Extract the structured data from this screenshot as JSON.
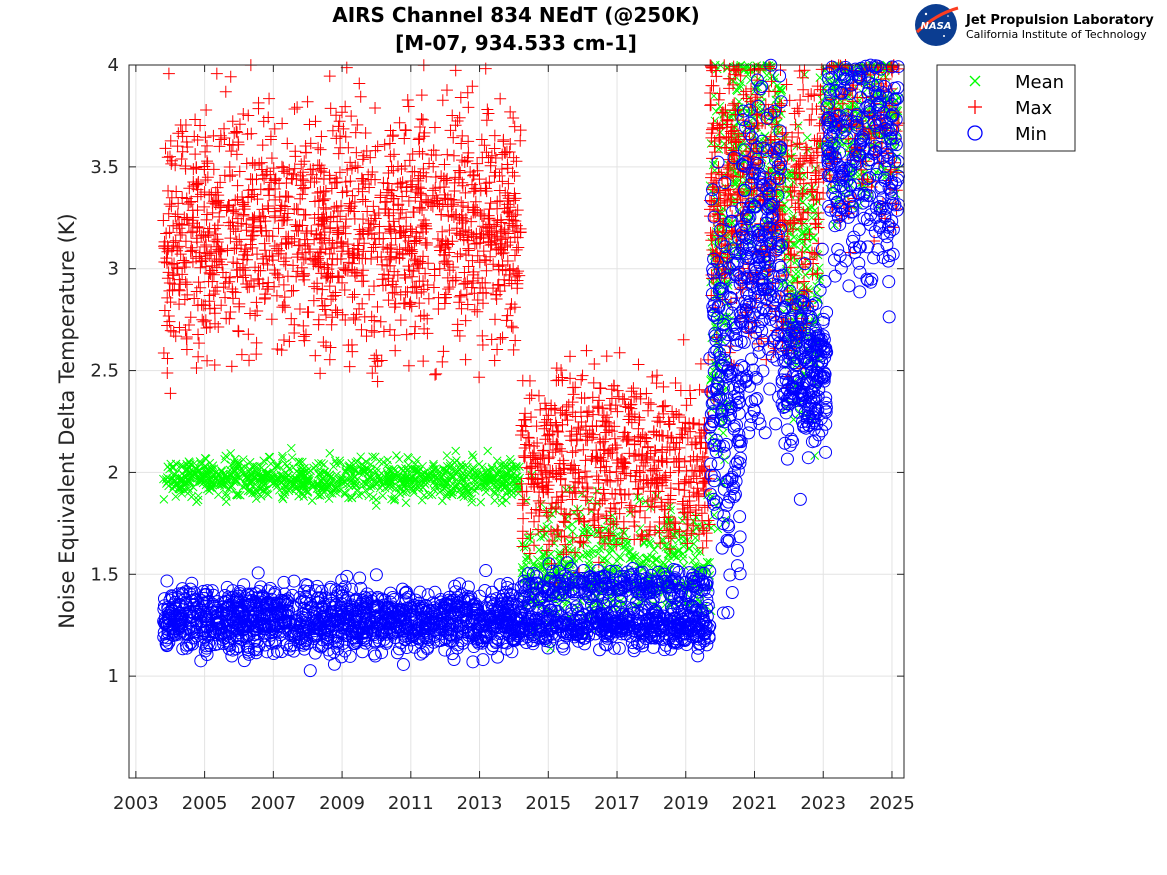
{
  "chart_data": {
    "type": "scatter",
    "title": "AIRS Channel 834 NEdT (@250K)",
    "subtitle": "[M-07, 934.533 cm-1]",
    "xlabel": "",
    "ylabel": "Noise Equivalent Delta Temperature (K)",
    "xlim": [
      2002.8,
      2025.35
    ],
    "ylim": [
      0.5,
      4.0
    ],
    "xticks": [
      2003,
      2005,
      2007,
      2009,
      2011,
      2013,
      2015,
      2017,
      2019,
      2021,
      2023,
      2025
    ],
    "xtick_labels": [
      "2003",
      "2005",
      "2007",
      "2009",
      "2011",
      "2013",
      "2015",
      "2017",
      "2019",
      "2021",
      "2023",
      "2025"
    ],
    "yticks": [
      1,
      1.5,
      2,
      2.5,
      3,
      3.5,
      4
    ],
    "ytick_labels": [
      "1",
      "1.5",
      "2",
      "2.5",
      "3",
      "3.5",
      "4"
    ],
    "grid": true,
    "legend_position": "outside-top-right",
    "series": [
      {
        "name": "Mean",
        "marker": "x",
        "color": "#00ff00",
        "segments": [
          {
            "x_range": [
              2003.8,
              2014.2
            ],
            "center": 1.97,
            "spread": 0.05,
            "n": 900
          },
          {
            "x_range": [
              2014.2,
              2019.7
            ],
            "center": 1.55,
            "spread": 0.15,
            "n": 500
          },
          {
            "x_range": [
              2019.7,
              2020.3
            ],
            "center": 2.8,
            "spread": 0.6,
            "n": 150
          },
          {
            "x_range": [
              2020.3,
              2021.8
            ],
            "center": 3.6,
            "spread": 0.3,
            "n": 250
          },
          {
            "x_range": [
              2021.8,
              2022.9
            ],
            "center": 3.0,
            "spread": 0.35,
            "n": 200
          },
          {
            "x_range": [
              2022.9,
              2025.2
            ],
            "center": 3.75,
            "spread": 0.2,
            "n": 250
          }
        ]
      },
      {
        "name": "Max",
        "marker": "+",
        "color": "#ff0000",
        "segments": [
          {
            "x_range": [
              2003.8,
              2014.2
            ],
            "center": 3.2,
            "spread": 0.3,
            "n": 1500
          },
          {
            "x_range": [
              2014.2,
              2019.7
            ],
            "center": 2.05,
            "spread": 0.22,
            "n": 700
          },
          {
            "x_range": [
              2019.7,
              2020.6
            ],
            "center": 3.4,
            "spread": 0.4,
            "n": 200
          },
          {
            "x_range": [
              2020.6,
              2022.9
            ],
            "center": 3.35,
            "spread": 0.35,
            "n": 350
          },
          {
            "x_range": [
              2022.9,
              2025.2
            ],
            "center": 3.7,
            "spread": 0.25,
            "n": 180
          }
        ]
      },
      {
        "name": "Min",
        "marker": "o",
        "color": "#0000ff",
        "segments": [
          {
            "x_range": [
              2003.8,
              2014.2
            ],
            "center": 1.28,
            "spread": 0.08,
            "n": 1300
          },
          {
            "x_range": [
              2014.2,
              2019.7
            ],
            "center": 1.25,
            "spread": 0.05,
            "n": 500
          },
          {
            "x_range": [
              2014.2,
              2019.7
            ],
            "center": 1.45,
            "spread": 0.04,
            "n": 250
          },
          {
            "x_range": [
              2019.7,
              2020.6
            ],
            "center": 2.5,
            "spread": 0.5,
            "n": 200
          },
          {
            "x_range": [
              2020.6,
              2021.8
            ],
            "center": 3.1,
            "spread": 0.4,
            "n": 250
          },
          {
            "x_range": [
              2021.8,
              2023.1
            ],
            "center": 2.5,
            "spread": 0.2,
            "n": 250
          },
          {
            "x_range": [
              2023.1,
              2025.2
            ],
            "center": 3.55,
            "spread": 0.3,
            "n": 300
          }
        ]
      }
    ]
  },
  "logo": {
    "badge": "NASA",
    "title": "Jet Propulsion Laboratory",
    "subtitle": "California Institute of Technology"
  }
}
